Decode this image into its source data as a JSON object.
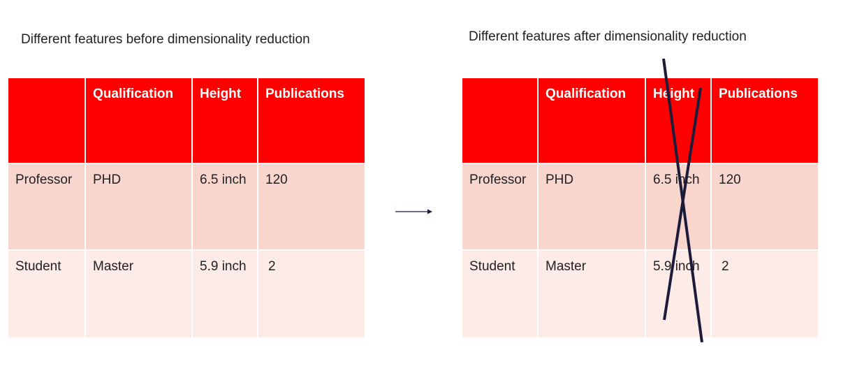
{
  "before": {
    "caption": "Different features before dimensionality reduction",
    "headers": [
      "",
      "Qualification",
      "Height",
      "Publications"
    ],
    "rows": [
      [
        "Professor",
        "PHD",
        "6.5 inch",
        "120"
      ],
      [
        "Student",
        "Master",
        "5.9 inch",
        "2"
      ]
    ]
  },
  "after": {
    "caption": "Different features after dimensionality reduction",
    "headers": [
      "",
      "Qualification",
      "Height",
      "Publications"
    ],
    "rows": [
      [
        "Professor",
        "PHD",
        "6.5 inch",
        "120"
      ],
      [
        "Student",
        "Master",
        "5.9 inch",
        "2"
      ]
    ],
    "removed_column": "Height"
  },
  "colors": {
    "header_bg": "#ff0000",
    "row1_bg": "#f8d6ce",
    "row2_bg": "#fcebe7",
    "cross_stroke": "#1c1c3a"
  }
}
